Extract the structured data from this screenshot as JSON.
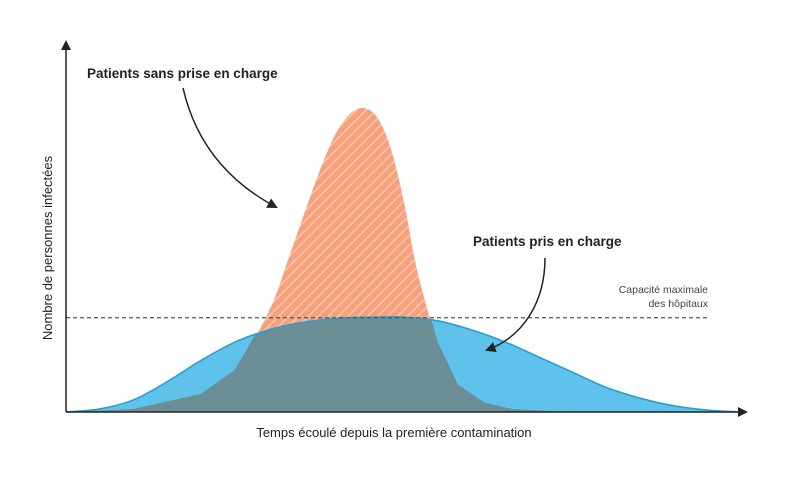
{
  "chart_data": {
    "type": "area",
    "title": "",
    "xlabel": "Temps écoulé depuis la première contamination",
    "ylabel": "Nombre de personnes infectées",
    "xlim": [
      0,
      100
    ],
    "ylim": [
      0,
      100
    ],
    "grid": false,
    "series": [
      {
        "name": "Patients sans prise en charge",
        "color": "#f58a62",
        "pattern": "diagonal-stripes",
        "x": [
          0,
          10,
          20,
          25,
          30,
          33,
          36,
          38,
          40,
          42,
          44,
          46,
          48,
          50,
          52,
          55,
          58,
          62,
          66,
          72,
          80,
          100
        ],
        "y": [
          0,
          1,
          6,
          14,
          33,
          51,
          70,
          82,
          92,
          98,
          100,
          97,
          87,
          69,
          46,
          23,
          9,
          3,
          1,
          0.3,
          0,
          0
        ]
      },
      {
        "name": "Patients pris en charge",
        "color": "#5ec2ea",
        "x": [
          0,
          5,
          10,
          15,
          20,
          25,
          30,
          35,
          40,
          45,
          48,
          50,
          55,
          60,
          65,
          70,
          75,
          80,
          85,
          90,
          95,
          100
        ],
        "y": [
          0,
          1,
          4,
          10,
          17,
          23,
          27,
          29.5,
          30.8,
          31.2,
          31.3,
          31.2,
          30,
          27,
          23,
          18,
          13,
          8,
          4.5,
          2,
          0.6,
          0
        ]
      }
    ],
    "threshold": {
      "value": 31,
      "label_line1": "Capacité maximale",
      "label_line2": "des hôpitaux"
    },
    "annotations": {
      "untreated": "Patients sans prise en charge",
      "treated": "Patients pris en charge"
    }
  }
}
